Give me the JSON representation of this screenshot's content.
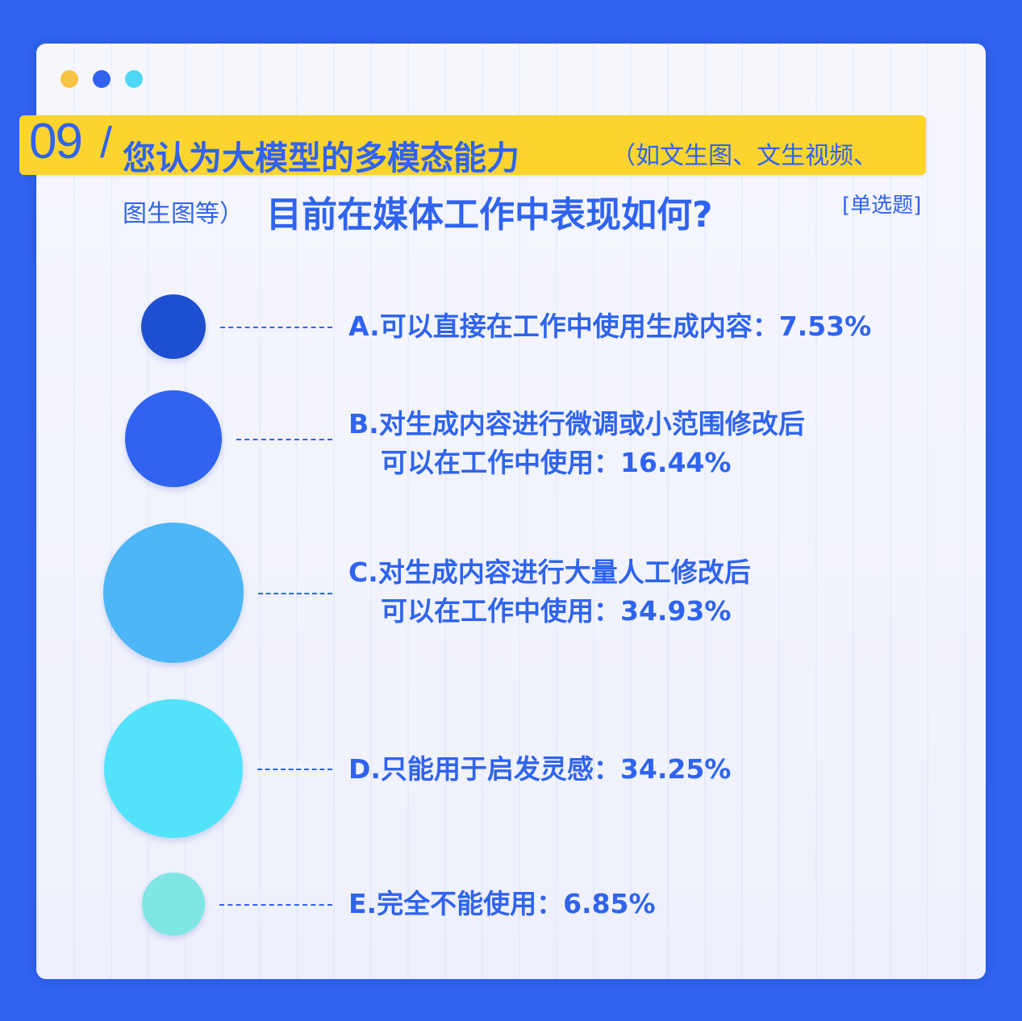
{
  "window": {
    "dots": [
      {
        "name": "dot-yellow",
        "color": "#f6c342"
      },
      {
        "name": "dot-blue",
        "color": "#2f63f0"
      },
      {
        "name": "dot-cyan",
        "color": "#4fd8f5"
      }
    ]
  },
  "header": {
    "number": "09",
    "slash": "/",
    "title_main": "您认为大模型的多模态能力",
    "title_paren_1": "（如文生图、文生视频、",
    "title_paren_2": "图生图等）",
    "title_main_2": "目前在媒体工作中表现如何?",
    "question_type": "[单选题]"
  },
  "chart_data": {
    "type": "bubble",
    "title": "您认为大模型的多模态能力（如文生图、文生视频、图生图等）目前在媒体工作中表现如何?",
    "categories": [
      "A",
      "B",
      "C",
      "D",
      "E"
    ],
    "values": [
      7.53,
      16.44,
      34.93,
      34.25,
      6.85
    ],
    "unit": "%",
    "colors": [
      "#1f4fd1",
      "#2f63f0",
      "#4cb6f7",
      "#52e3fb",
      "#7fe6e4"
    ],
    "labels": [
      {
        "line1": "A.可以直接在工作中使用生成内容：7.53%",
        "line2": ""
      },
      {
        "line1": "B.对生成内容进行微调或小范围修改后",
        "line2": "可以在工作中使用：16.44%"
      },
      {
        "line1": "C.对生成内容进行大量人工修改后",
        "line2": "可以在工作中使用：34.93%"
      },
      {
        "line1": "D.只能用于启发灵感：34.25%",
        "line2": ""
      },
      {
        "line1": "E.完全不能使用：6.85%",
        "line2": ""
      }
    ]
  }
}
